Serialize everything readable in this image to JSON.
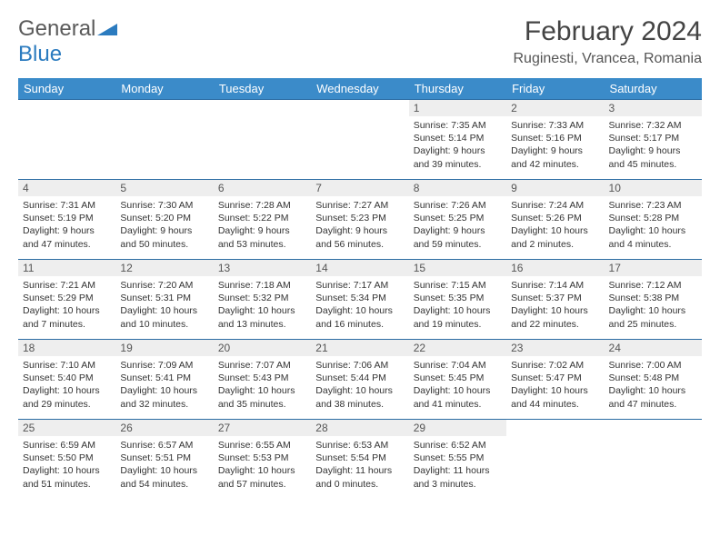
{
  "logo": {
    "part1": "General",
    "part2": "Blue"
  },
  "title": "February 2024",
  "location": "Ruginesti, Vrancea, Romania",
  "header_bg": "#3b8bc9",
  "weekdays": [
    "Sunday",
    "Monday",
    "Tuesday",
    "Wednesday",
    "Thursday",
    "Friday",
    "Saturday"
  ],
  "weeks": [
    [
      null,
      null,
      null,
      null,
      {
        "n": "1",
        "sr": "7:35 AM",
        "ss": "5:14 PM",
        "dl": "9 hours and 39 minutes."
      },
      {
        "n": "2",
        "sr": "7:33 AM",
        "ss": "5:16 PM",
        "dl": "9 hours and 42 minutes."
      },
      {
        "n": "3",
        "sr": "7:32 AM",
        "ss": "5:17 PM",
        "dl": "9 hours and 45 minutes."
      }
    ],
    [
      {
        "n": "4",
        "sr": "7:31 AM",
        "ss": "5:19 PM",
        "dl": "9 hours and 47 minutes."
      },
      {
        "n": "5",
        "sr": "7:30 AM",
        "ss": "5:20 PM",
        "dl": "9 hours and 50 minutes."
      },
      {
        "n": "6",
        "sr": "7:28 AM",
        "ss": "5:22 PM",
        "dl": "9 hours and 53 minutes."
      },
      {
        "n": "7",
        "sr": "7:27 AM",
        "ss": "5:23 PM",
        "dl": "9 hours and 56 minutes."
      },
      {
        "n": "8",
        "sr": "7:26 AM",
        "ss": "5:25 PM",
        "dl": "9 hours and 59 minutes."
      },
      {
        "n": "9",
        "sr": "7:24 AM",
        "ss": "5:26 PM",
        "dl": "10 hours and 2 minutes."
      },
      {
        "n": "10",
        "sr": "7:23 AM",
        "ss": "5:28 PM",
        "dl": "10 hours and 4 minutes."
      }
    ],
    [
      {
        "n": "11",
        "sr": "7:21 AM",
        "ss": "5:29 PM",
        "dl": "10 hours and 7 minutes."
      },
      {
        "n": "12",
        "sr": "7:20 AM",
        "ss": "5:31 PM",
        "dl": "10 hours and 10 minutes."
      },
      {
        "n": "13",
        "sr": "7:18 AM",
        "ss": "5:32 PM",
        "dl": "10 hours and 13 minutes."
      },
      {
        "n": "14",
        "sr": "7:17 AM",
        "ss": "5:34 PM",
        "dl": "10 hours and 16 minutes."
      },
      {
        "n": "15",
        "sr": "7:15 AM",
        "ss": "5:35 PM",
        "dl": "10 hours and 19 minutes."
      },
      {
        "n": "16",
        "sr": "7:14 AM",
        "ss": "5:37 PM",
        "dl": "10 hours and 22 minutes."
      },
      {
        "n": "17",
        "sr": "7:12 AM",
        "ss": "5:38 PM",
        "dl": "10 hours and 25 minutes."
      }
    ],
    [
      {
        "n": "18",
        "sr": "7:10 AM",
        "ss": "5:40 PM",
        "dl": "10 hours and 29 minutes."
      },
      {
        "n": "19",
        "sr": "7:09 AM",
        "ss": "5:41 PM",
        "dl": "10 hours and 32 minutes."
      },
      {
        "n": "20",
        "sr": "7:07 AM",
        "ss": "5:43 PM",
        "dl": "10 hours and 35 minutes."
      },
      {
        "n": "21",
        "sr": "7:06 AM",
        "ss": "5:44 PM",
        "dl": "10 hours and 38 minutes."
      },
      {
        "n": "22",
        "sr": "7:04 AM",
        "ss": "5:45 PM",
        "dl": "10 hours and 41 minutes."
      },
      {
        "n": "23",
        "sr": "7:02 AM",
        "ss": "5:47 PM",
        "dl": "10 hours and 44 minutes."
      },
      {
        "n": "24",
        "sr": "7:00 AM",
        "ss": "5:48 PM",
        "dl": "10 hours and 47 minutes."
      }
    ],
    [
      {
        "n": "25",
        "sr": "6:59 AM",
        "ss": "5:50 PM",
        "dl": "10 hours and 51 minutes."
      },
      {
        "n": "26",
        "sr": "6:57 AM",
        "ss": "5:51 PM",
        "dl": "10 hours and 54 minutes."
      },
      {
        "n": "27",
        "sr": "6:55 AM",
        "ss": "5:53 PM",
        "dl": "10 hours and 57 minutes."
      },
      {
        "n": "28",
        "sr": "6:53 AM",
        "ss": "5:54 PM",
        "dl": "11 hours and 0 minutes."
      },
      {
        "n": "29",
        "sr": "6:52 AM",
        "ss": "5:55 PM",
        "dl": "11 hours and 3 minutes."
      },
      null,
      null
    ]
  ],
  "labels": {
    "sunrise": "Sunrise: ",
    "sunset": "Sunset: ",
    "daylight": "Daylight: "
  }
}
